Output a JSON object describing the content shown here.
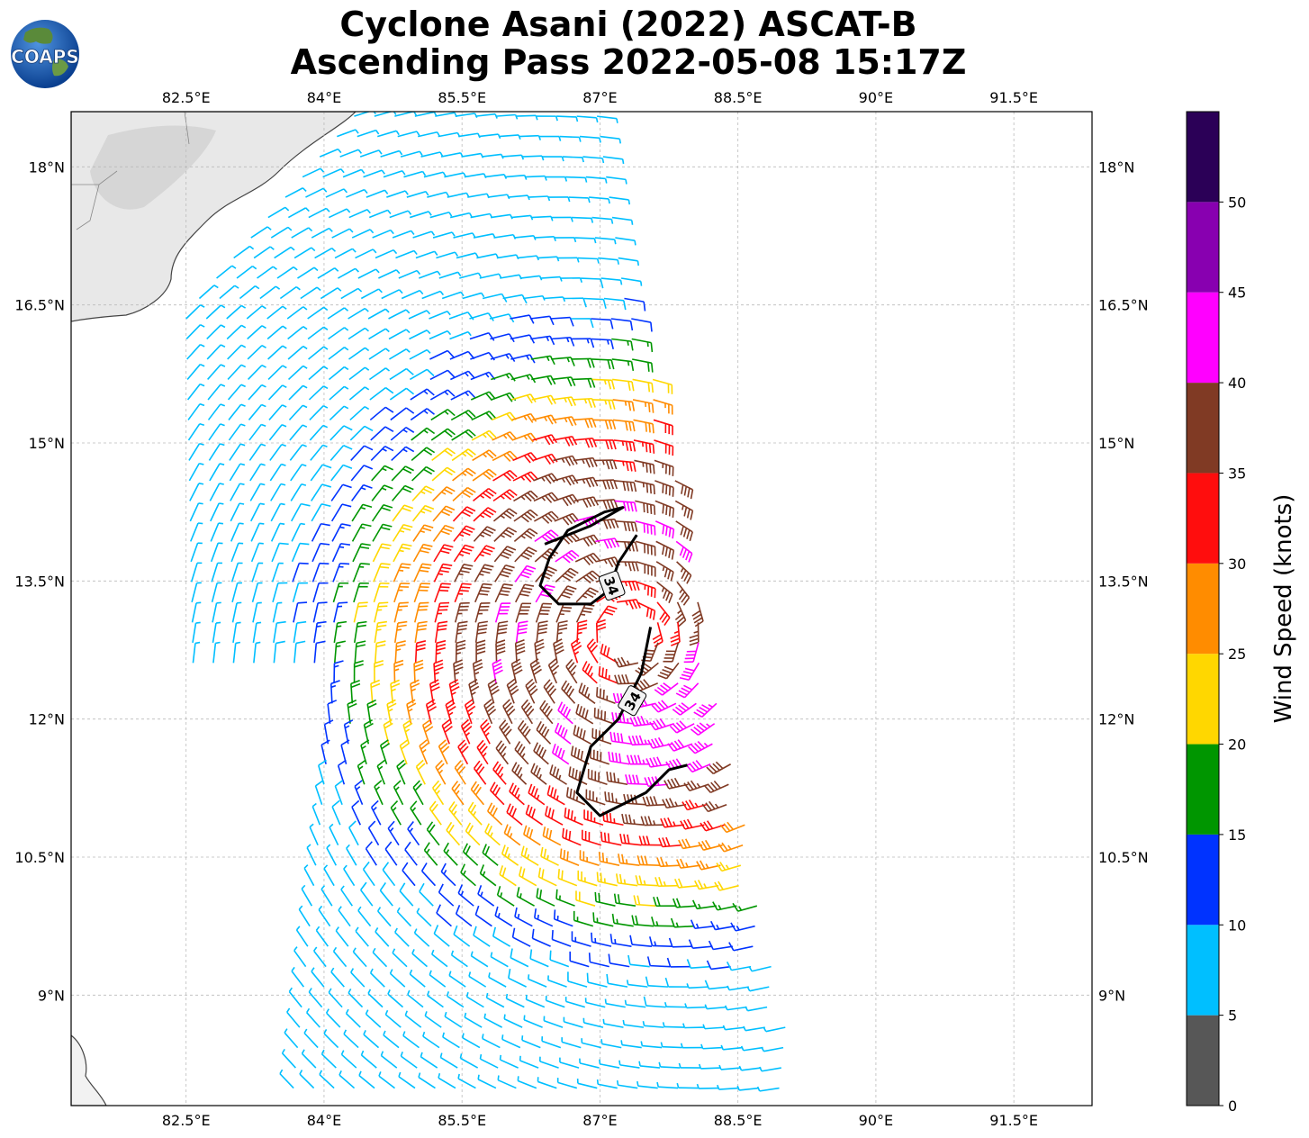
{
  "header": {
    "title_line1": "Cyclone Asani (2022) ASCAT-B",
    "title_line2": "Ascending Pass 2022-05-08 15:17Z",
    "logo_text": "COAPS"
  },
  "map": {
    "lon_range": [
      81.25,
      92.35
    ],
    "lat_range": [
      7.8,
      18.6
    ],
    "lon_ticks": [
      "82.5°E",
      "84°E",
      "85.5°E",
      "87°E",
      "88.5°E",
      "90°E",
      "91.5°E"
    ],
    "lat_ticks": [
      "18°N",
      "16.5°N",
      "15°N",
      "13.5°N",
      "12°N",
      "10.5°N",
      "9°N"
    ],
    "lon_tick_values": [
      82.5,
      84,
      85.5,
      87,
      88.5,
      90,
      91.5
    ],
    "lat_tick_values": [
      18,
      16.5,
      15,
      13.5,
      12,
      10.5,
      9
    ],
    "grid": true,
    "storm_center": {
      "lon": 87.3,
      "lat": 12.9
    },
    "swath": {
      "west_edge_top": {
        "lon": 84.4,
        "lat": 18.6
      },
      "west_edge_bottom": {
        "lon": 84.2,
        "lat": 7.8
      },
      "east_edge_top": {
        "lon": 87.0,
        "lat": 18.6
      },
      "east_edge_bottom": {
        "lon": 89.2,
        "lat": 7.8
      },
      "upper_left": {
        "lon": 82.5,
        "lat": 16.4
      }
    },
    "contour_label": "34"
  },
  "colorbar": {
    "title": "Wind Speed (knots)",
    "ticks": [
      "0",
      "5",
      "10",
      "15",
      "20",
      "25",
      "30",
      "35",
      "40",
      "45",
      "50"
    ],
    "bins": [
      {
        "min": 0,
        "max": 5,
        "color": "#575757"
      },
      {
        "min": 5,
        "max": 10,
        "color": "#00bfff"
      },
      {
        "min": 10,
        "max": 15,
        "color": "#0033ff"
      },
      {
        "min": 15,
        "max": 20,
        "color": "#009600"
      },
      {
        "min": 20,
        "max": 25,
        "color": "#ffd700"
      },
      {
        "min": 25,
        "max": 30,
        "color": "#ff8c00"
      },
      {
        "min": 30,
        "max": 35,
        "color": "#ff0d0d"
      },
      {
        "min": 35,
        "max": 40,
        "color": "#803a24"
      },
      {
        "min": 40,
        "max": 45,
        "color": "#ff00ff"
      },
      {
        "min": 45,
        "max": 50,
        "color": "#8800b0"
      },
      {
        "min": 50,
        "max": 55,
        "color": "#2b0057"
      }
    ]
  },
  "colors": {
    "land": "#e8e8e8",
    "coast": "#444444",
    "grid": "#bbbbbb",
    "contour": "#000000"
  }
}
